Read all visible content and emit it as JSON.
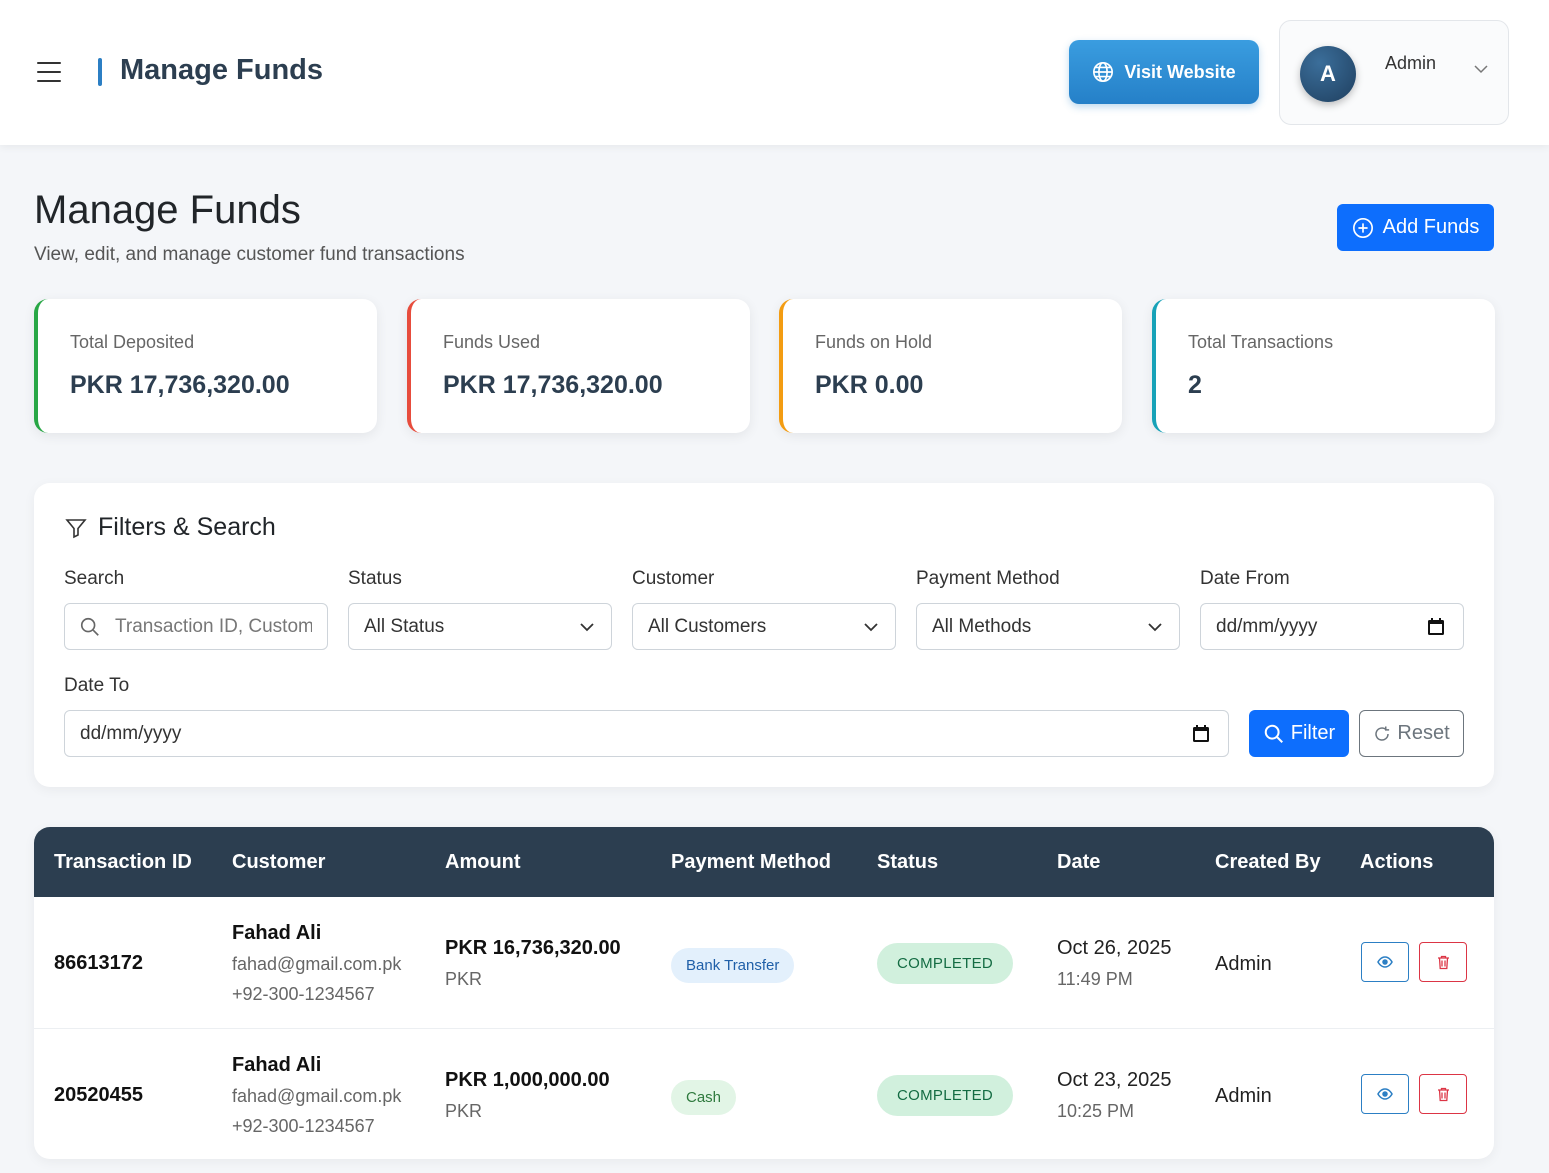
{
  "topbar": {
    "title": "Manage Funds",
    "visit_label": "Visit Website",
    "user_initial": "A",
    "user_name": "Admin"
  },
  "page": {
    "title": "Manage Funds",
    "subtitle": "View, edit, and manage customer fund transactions",
    "add_label": "Add Funds"
  },
  "stats": [
    {
      "label": "Total Deposited",
      "value": "PKR 17,736,320.00",
      "color": "#28a745"
    },
    {
      "label": "Funds Used",
      "value": "PKR 17,736,320.00",
      "color": "#e74c3c"
    },
    {
      "label": "Funds on Hold",
      "value": "PKR 0.00",
      "color": "#f39c12"
    },
    {
      "label": "Total Transactions",
      "value": "2",
      "color": "#17a2b8"
    }
  ],
  "filters": {
    "heading": "Filters & Search",
    "search_label": "Search",
    "search_placeholder": "Transaction ID, Customer",
    "status_label": "Status",
    "status_value": "All Status",
    "customer_label": "Customer",
    "customer_value": "All Customers",
    "method_label": "Payment Method",
    "method_value": "All Methods",
    "date_from_label": "Date From",
    "date_from_value": "dd/mm/yyyy",
    "date_to_label": "Date To",
    "date_to_value": "dd/mm/yyyy",
    "filter_label": "Filter",
    "reset_label": "Reset"
  },
  "table": {
    "headers": [
      "Transaction ID",
      "Customer",
      "Amount",
      "Payment Method",
      "Status",
      "Date",
      "Created By",
      "Actions"
    ],
    "rows": [
      {
        "id": "86613172",
        "customer_name": "Fahad Ali",
        "customer_email": "fahad@gmail.com.pk",
        "customer_phone": "+92-300-1234567",
        "amount": "PKR 16,736,320.00",
        "currency": "PKR",
        "method": "Bank Transfer",
        "status": "COMPLETED",
        "date": "Oct 26, 2025",
        "time": "11:49 PM",
        "created_by": "Admin"
      },
      {
        "id": "20520455",
        "customer_name": "Fahad Ali",
        "customer_email": "fahad@gmail.com.pk",
        "customer_phone": "+92-300-1234567",
        "amount": "PKR 1,000,000.00",
        "currency": "PKR",
        "method": "Cash",
        "status": "COMPLETED",
        "date": "Oct 23, 2025",
        "time": "10:25 PM",
        "created_by": "Admin"
      }
    ]
  }
}
